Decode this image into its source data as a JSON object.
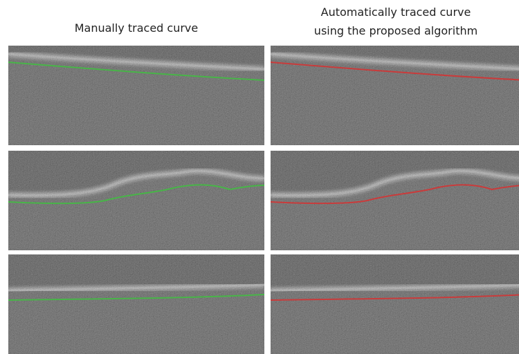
{
  "columns": [
    {
      "title_lines": [
        "Manually traced curve"
      ]
    },
    {
      "title_lines": [
        "Automatically traced curve",
        "using the proposed algorithm"
      ]
    }
  ]
}
